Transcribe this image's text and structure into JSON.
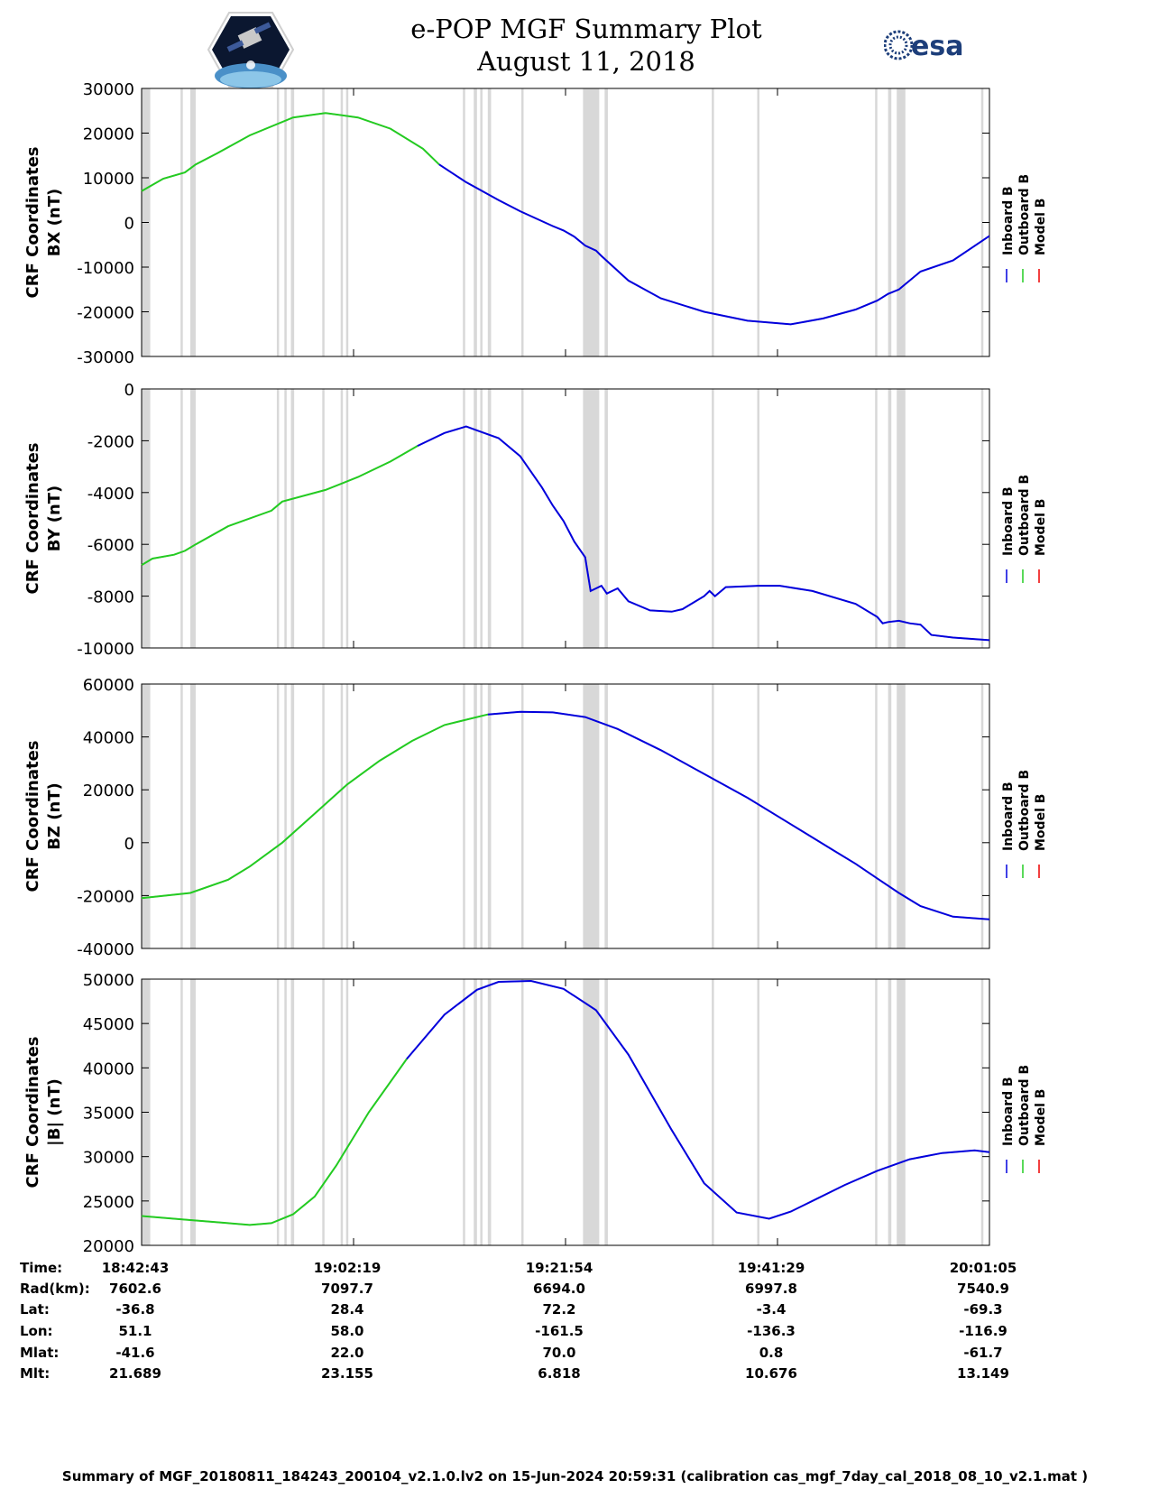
{
  "header": {
    "title_line1": "e-POP MGF Summary Plot",
    "title_line2": "August 11, 2018",
    "left_logo": "cassiope-logo",
    "right_logo_text": "esa"
  },
  "legend": [
    "Inboard B",
    "Outboard B",
    "Model B"
  ],
  "colors": {
    "inboard": "#0000dd",
    "outboard": "#22cc22",
    "model": "#ee0000",
    "gap": "#d8d8d8"
  },
  "x_ticks": [
    "18:42:43",
    "19:02:19",
    "19:21:54",
    "19:41:29",
    "20:01:05"
  ],
  "x_range_min": [
    0,
    78.37
  ],
  "data_gaps_min": [
    [
      0.0,
      0.8
    ],
    [
      3.6,
      3.8
    ],
    [
      4.5,
      5.0
    ],
    [
      12.5,
      12.7
    ],
    [
      13.2,
      13.4
    ],
    [
      13.8,
      14.1
    ],
    [
      16.7,
      16.9
    ],
    [
      18.4,
      18.6
    ],
    [
      18.9,
      19.1
    ],
    [
      29.7,
      29.9
    ],
    [
      30.7,
      31.0
    ],
    [
      31.3,
      31.5
    ],
    [
      32.0,
      32.3
    ],
    [
      35.1,
      35.3
    ],
    [
      40.8,
      42.3
    ],
    [
      42.8,
      43.1
    ],
    [
      52.7,
      52.9
    ],
    [
      56.9,
      57.1
    ],
    [
      67.8,
      68.0
    ],
    [
      69.0,
      69.3
    ],
    [
      69.8,
      70.6
    ],
    [
      77.6,
      77.8
    ]
  ],
  "table": {
    "rows": [
      {
        "label": "Time:",
        "values": [
          "18:42:43",
          "19:02:19",
          "19:21:54",
          "19:41:29",
          "20:01:05"
        ]
      },
      {
        "label": "Rad(km):",
        "values": [
          "7602.6",
          "7097.7",
          "6694.0",
          "6997.8",
          "7540.9"
        ]
      },
      {
        "label": "Lat:",
        "values": [
          "-36.8",
          "28.4",
          "72.2",
          "-3.4",
          "-69.3"
        ]
      },
      {
        "label": "Lon:",
        "values": [
          "51.1",
          "58.0",
          "-161.5",
          "-136.3",
          "-116.9"
        ]
      },
      {
        "label": "Mlat:",
        "values": [
          "-41.6",
          "22.0",
          "70.0",
          "0.8",
          "-61.7"
        ]
      },
      {
        "label": "Mlt:",
        "values": [
          "21.689",
          "23.155",
          "6.818",
          "10.676",
          "13.149"
        ]
      }
    ]
  },
  "footer": "Summary of MGF_20180811_184243_200104_v2.1.0.lv2 on 15-Jun-2024 20:59:31 (calibration cas_mgf_7day_cal_2018_08_10_v2.1.mat )",
  "chart_data": [
    {
      "type": "line",
      "ylabel": [
        "CRF Coordinates",
        "BX (nT)"
      ],
      "ylim": [
        -30000,
        30000
      ],
      "yticks": [
        "30000",
        "20000",
        "10000",
        "0",
        "-10000",
        "-20000",
        "-30000"
      ],
      "ytick_values": [
        30000,
        20000,
        10000,
        0,
        -10000,
        -20000,
        -30000
      ],
      "xlabel": "",
      "green_until_min": 27.5,
      "series": [
        {
          "name": "Inboard B",
          "x": [
            0,
            2,
            4,
            5,
            7,
            10,
            14,
            17,
            20,
            23,
            26,
            27.5,
            30,
            33,
            35,
            38,
            39,
            40,
            41,
            42,
            42.5,
            45,
            48,
            52,
            56,
            60,
            63,
            66,
            68,
            69,
            70,
            72,
            75,
            78.37
          ],
          "y": [
            7000,
            9800,
            11200,
            13000,
            15500,
            19500,
            23500,
            24500,
            23500,
            21000,
            16500,
            13000,
            9000,
            5000,
            2500,
            -800,
            -1800,
            -3200,
            -5200,
            -6300,
            -7500,
            -13000,
            -17000,
            -20000,
            -22000,
            -22800,
            -21500,
            -19500,
            -17500,
            -16000,
            -15000,
            -11000,
            -8500,
            -3000
          ]
        }
      ]
    },
    {
      "type": "line",
      "ylabel": [
        "CRF Coordinates",
        "BY (nT)"
      ],
      "ylim": [
        -10000,
        0
      ],
      "yticks": [
        "0",
        "-2000",
        "-4000",
        "-6000",
        "-8000",
        "-10000"
      ],
      "ytick_values": [
        0,
        -2000,
        -4000,
        -6000,
        -8000,
        -10000
      ],
      "xlabel": "",
      "green_until_min": 25.5,
      "series": [
        {
          "name": "Inboard B",
          "x": [
            0,
            1,
            3,
            4,
            5,
            8,
            12,
            13,
            17,
            20,
            23,
            25.5,
            28,
            30,
            31,
            33,
            35,
            37,
            38,
            39,
            40,
            41,
            41.5,
            42.5,
            43,
            44,
            45,
            47,
            49,
            50,
            52,
            52.5,
            53,
            54,
            57,
            59,
            62,
            66,
            68,
            68.5,
            69,
            70,
            71,
            72,
            73,
            75,
            78.37
          ],
          "y": [
            -6800,
            -6550,
            -6400,
            -6250,
            -6000,
            -5300,
            -4700,
            -4350,
            -3900,
            -3400,
            -2800,
            -2200,
            -1700,
            -1450,
            -1600,
            -1900,
            -2600,
            -3800,
            -4500,
            -5100,
            -5900,
            -6500,
            -7800,
            -7600,
            -7900,
            -7700,
            -8200,
            -8550,
            -8600,
            -8500,
            -8000,
            -7800,
            -8000,
            -7650,
            -7600,
            -7600,
            -7800,
            -8300,
            -8800,
            -9050,
            -9000,
            -8950,
            -9050,
            -9100,
            -9500,
            -9600,
            -9700
          ]
        }
      ]
    },
    {
      "type": "line",
      "ylabel": [
        "CRF Coordinates",
        "BZ (nT)"
      ],
      "ylim": [
        -40000,
        60000
      ],
      "yticks": [
        "60000",
        "40000",
        "20000",
        "0",
        "-20000",
        "-40000"
      ],
      "ytick_values": [
        60000,
        40000,
        20000,
        0,
        -20000,
        -40000
      ],
      "xlabel": "",
      "green_until_min": 32,
      "series": [
        {
          "name": "Inboard B",
          "x": [
            0,
            4.5,
            8,
            10,
            13,
            16,
            19,
            22,
            25,
            28,
            32,
            35,
            38,
            41,
            44,
            48,
            52,
            56,
            60,
            64,
            66,
            68,
            70,
            72,
            75,
            78.37
          ],
          "y": [
            -21000,
            -19000,
            -14000,
            -9000,
            0,
            11000,
            22000,
            31000,
            38500,
            44500,
            48500,
            49500,
            49300,
            47500,
            43000,
            35000,
            26000,
            17000,
            7000,
            -3000,
            -8000,
            -13500,
            -19000,
            -24000,
            -28000,
            -29000
          ]
        }
      ]
    },
    {
      "type": "line",
      "ylabel": [
        "CRF Coordinates",
        "|B| (nT)"
      ],
      "ylim": [
        20000,
        50000
      ],
      "yticks": [
        "50000",
        "45000",
        "40000",
        "35000",
        "30000",
        "25000",
        "20000"
      ],
      "ytick_values": [
        50000,
        45000,
        40000,
        35000,
        30000,
        25000,
        20000
      ],
      "xlabel": "",
      "green_until_min": 24.5,
      "series": [
        {
          "name": "Inboard B",
          "x": [
            0,
            4,
            8,
            10,
            12,
            14,
            16,
            18,
            21,
            24.5,
            28,
            31,
            33,
            36,
            39,
            42,
            45,
            49,
            52,
            55,
            58,
            60,
            62,
            65,
            68,
            71,
            74,
            77,
            78.37
          ],
          "y": [
            23300,
            22900,
            22500,
            22300,
            22500,
            23500,
            25500,
            29000,
            35000,
            41000,
            46000,
            48800,
            49700,
            49800,
            48900,
            46500,
            41500,
            33000,
            27000,
            23700,
            23000,
            23800,
            25000,
            26800,
            28400,
            29700,
            30400,
            30700,
            30500
          ]
        }
      ]
    }
  ]
}
